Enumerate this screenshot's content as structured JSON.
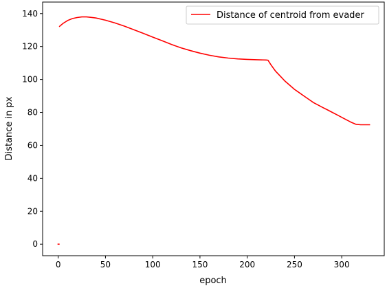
{
  "chart_data": {
    "type": "line",
    "title": "",
    "xlabel": "epoch",
    "ylabel": "Distance in px",
    "xlim": [
      -16.5,
      345
    ],
    "ylim": [
      -7,
      147
    ],
    "xticks": [
      0,
      50,
      100,
      150,
      200,
      250,
      300
    ],
    "yticks": [
      0,
      20,
      40,
      60,
      80,
      100,
      120,
      140
    ],
    "grid": false,
    "legend_position": "top-right",
    "series": [
      {
        "name": "Distance of centroid from evader",
        "color": "#ff0000",
        "x": [
          0,
          1,
          2,
          5,
          10,
          15,
          20,
          25,
          30,
          35,
          40,
          50,
          60,
          70,
          80,
          90,
          100,
          110,
          120,
          130,
          140,
          150,
          160,
          170,
          180,
          190,
          200,
          210,
          220,
          222,
          225,
          230,
          235,
          240,
          245,
          250,
          255,
          260,
          265,
          270,
          275,
          280,
          285,
          290,
          295,
          300,
          305,
          310,
          315,
          320,
          325,
          330
        ],
        "y": [
          0,
          132,
          132.5,
          134,
          135.8,
          137,
          137.6,
          138,
          138,
          137.7,
          137.3,
          136,
          134.3,
          132.4,
          130.2,
          128,
          125.7,
          123.5,
          121.2,
          119.2,
          117.5,
          116,
          114.7,
          113.7,
          113,
          112.5,
          112.2,
          112,
          111.8,
          111.7,
          109,
          105,
          102,
          99,
          96.5,
          94,
          92,
          90,
          88,
          86,
          84.5,
          83,
          81.5,
          80,
          78.5,
          77,
          75.5,
          74,
          72.8,
          72.5,
          72.5,
          72.5
        ]
      }
    ]
  }
}
